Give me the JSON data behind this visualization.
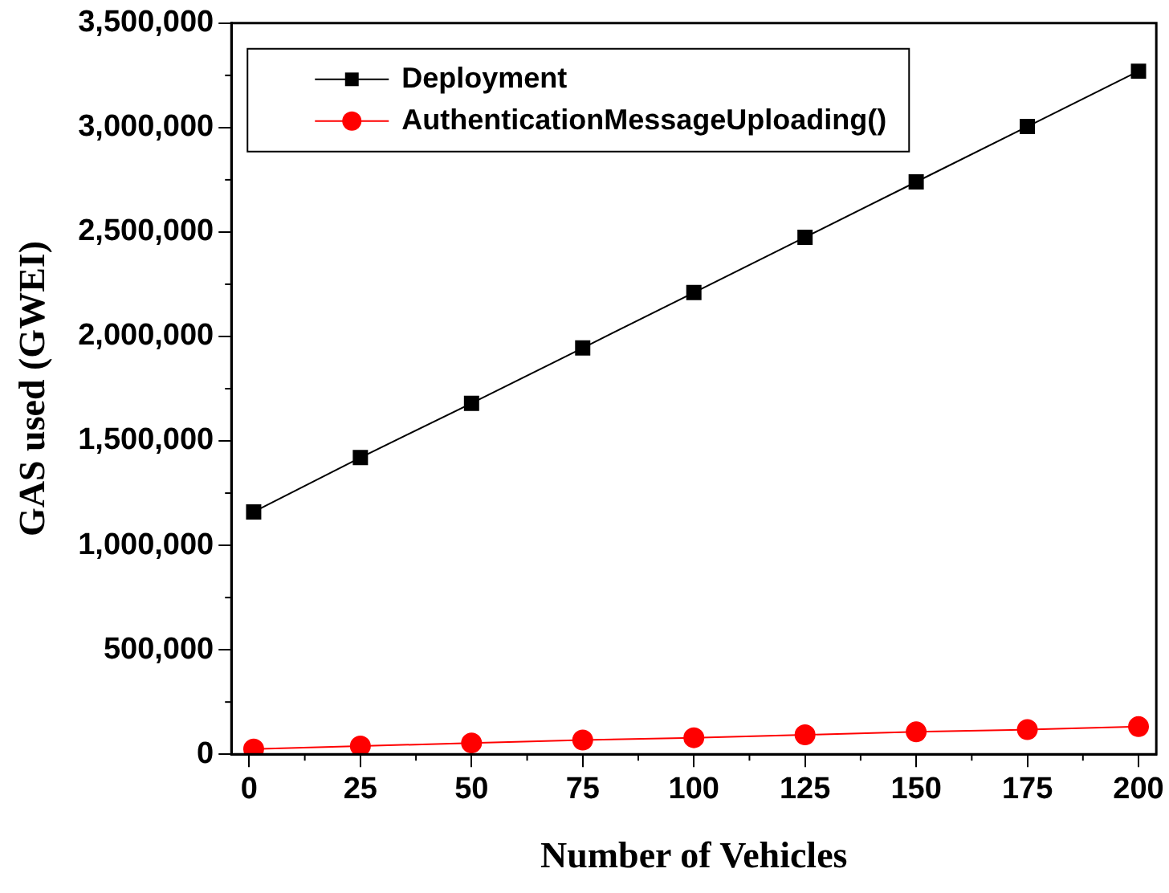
{
  "chart_data": {
    "type": "line",
    "xlabel": "Number of Vehicles",
    "ylabel": "GAS used (GWEI)",
    "x": [
      1,
      25,
      50,
      75,
      100,
      125,
      150,
      175,
      200
    ],
    "series": [
      {
        "name": "Deployment",
        "color": "#000000",
        "marker": "square",
        "values": [
          1160000,
          1420000,
          1680000,
          1945000,
          2210000,
          2475000,
          2740000,
          3005000,
          3270000
        ]
      },
      {
        "name": "AuthenticationMessageUploading()",
        "color": "#ff0000",
        "marker": "circle",
        "values": [
          25000,
          39000,
          54000,
          68000,
          79000,
          93000,
          107000,
          118000,
          132000
        ]
      }
    ],
    "xlim": [
      -4,
      204
    ],
    "xticks": [
      0,
      25,
      50,
      75,
      100,
      125,
      150,
      175,
      200
    ],
    "ylim": [
      0,
      3500000
    ],
    "yticks": [
      0,
      {
        "value": 500000,
        "label": "500,000"
      },
      {
        "value": 1000000,
        "label": "1,000,000"
      },
      {
        "value": 1500000,
        "label": "1,500,000"
      },
      {
        "value": 2000000,
        "label": "2,000,000"
      },
      {
        "value": 2500000,
        "label": "2,500,000"
      },
      {
        "value": 3000000,
        "label": "3,000,000"
      },
      {
        "value": 3500000,
        "label": "3,500,000"
      }
    ],
    "grid": false,
    "legend": "top left"
  }
}
